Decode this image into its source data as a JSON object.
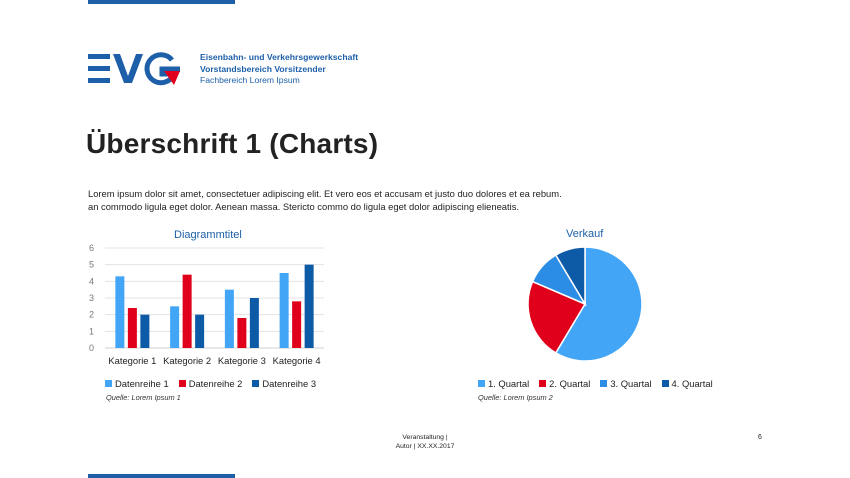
{
  "org": {
    "line1": "Eisenbahn- und Verkehrsgewerkschaft",
    "line2": "Vorstandsbereich Vorsitzender",
    "line3": "Fachbereich Lorem Ipsum"
  },
  "heading": "Überschrift 1 (Charts)",
  "body": {
    "line1": "Lorem ipsum dolor sit amet, consectetuer adipiscing elit. Et vero eos et accusam et justo duo dolores et ea rebum.",
    "line2": "an commodo ligula eget dolor. Aenean massa. Stericto  commo do ligula eget dolor adipiscing elieneatis."
  },
  "colors": {
    "brand": "#1d5fa8",
    "light": "#42a5f5",
    "red": "#e0001b",
    "dark": "#0d5aa7"
  },
  "chart_data": [
    {
      "type": "bar",
      "title": "Diagrammtitel",
      "categories": [
        "Kategorie 1",
        "Kategorie 2",
        "Kategorie 3",
        "Kategorie 4"
      ],
      "series": [
        {
          "name": "Datenreihe 1",
          "values": [
            4.3,
            2.5,
            3.5,
            4.5
          ],
          "color": "#42a5f5"
        },
        {
          "name": "Datenreihe 2",
          "values": [
            2.4,
            4.4,
            1.8,
            2.8
          ],
          "color": "#e0001b"
        },
        {
          "name": "Datenreihe 3",
          "values": [
            2.0,
            2.0,
            3.0,
            5.0
          ],
          "color": "#0d5aa7"
        }
      ],
      "ylim": [
        0,
        6
      ],
      "yticks": [
        "0",
        "1",
        "2",
        "3",
        "4",
        "5",
        "6"
      ],
      "grid": true,
      "legend": "bottom",
      "source": "Quelle: Lorem Ipsum 1"
    },
    {
      "type": "pie",
      "title": "Verkauf",
      "labels": [
        "1. Quartal",
        "2. Quartal",
        "3. Quartal",
        "4. Quartal"
      ],
      "values": [
        8.2,
        3.2,
        1.4,
        1.2
      ],
      "colors": [
        "#42a5f5",
        "#e0001b",
        "#2b8de6",
        "#0d5aa7"
      ],
      "legend": "bottom",
      "source": "Quelle: Lorem Ipsum 2"
    }
  ],
  "footer": {
    "line1": "Veranstaltung |",
    "line2": "Autor | XX.XX.2017",
    "page": "6"
  }
}
